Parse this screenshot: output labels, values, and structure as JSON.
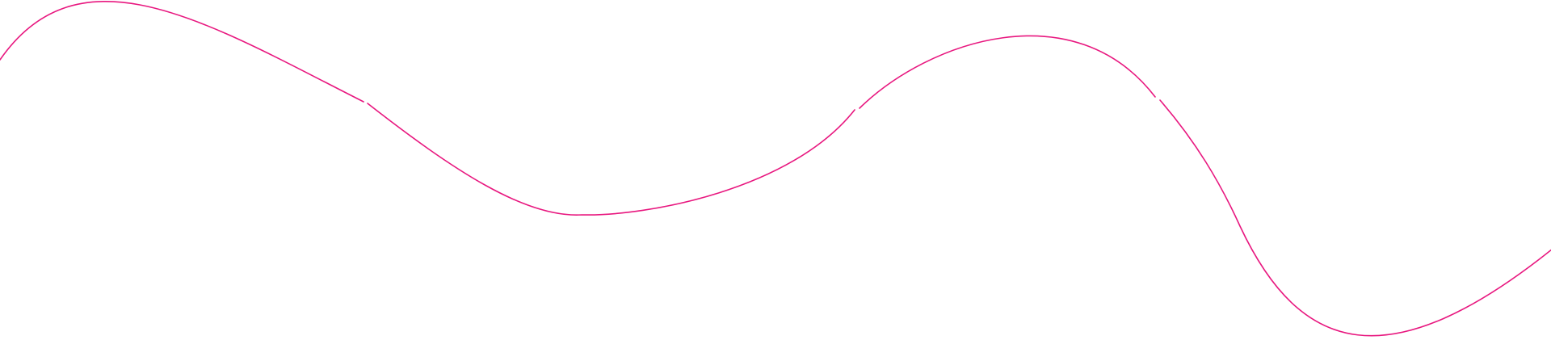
{
  "decoration": {
    "type": "wave-line",
    "stroke_color": "#e8177f",
    "background_color": "#ffffff"
  }
}
